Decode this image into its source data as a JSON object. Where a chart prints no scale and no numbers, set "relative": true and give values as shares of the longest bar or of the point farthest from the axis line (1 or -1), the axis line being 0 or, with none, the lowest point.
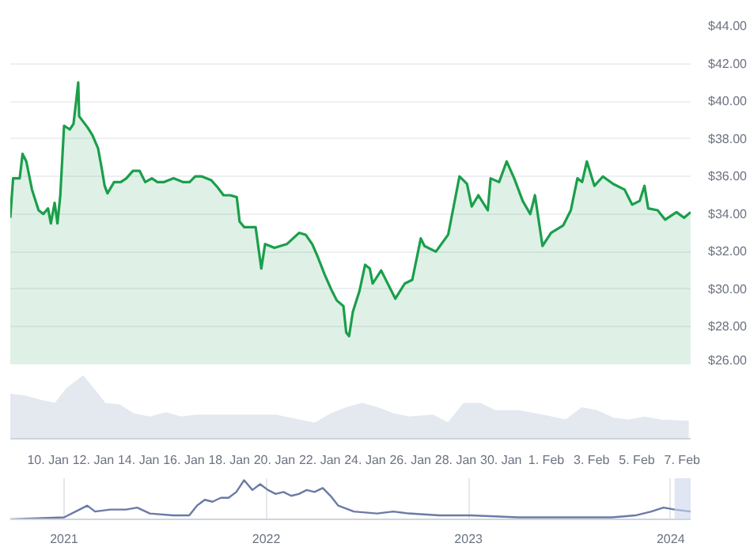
{
  "chart_data": [
    {
      "type": "area",
      "x": [
        "2024-01-08T08:00",
        "2024-01-08T11:00",
        "2024-01-08T18:00",
        "2024-01-08T21:00",
        "2024-01-09T01:00",
        "2024-01-09T07:00",
        "2024-01-09T14:00",
        "2024-01-09T19:00",
        "2024-01-10T00:00",
        "2024-01-10T03:00",
        "2024-01-10T07:00",
        "2024-01-10T10:00",
        "2024-01-10T13:00",
        "2024-01-10T17:00",
        "2024-01-10T23:00",
        "2024-01-11T03:00",
        "2024-01-11T06:00",
        "2024-01-11T08:00",
        "2024-01-11T09:00",
        "2024-01-11T18:00",
        "2024-01-11T23:00",
        "2024-01-12T05:00",
        "2024-01-12T09:00",
        "2024-01-12T12:00",
        "2024-01-12T15:00",
        "2024-01-12T22:00",
        "2024-01-13T05:00",
        "2024-01-13T11:00",
        "2024-01-13T18:00",
        "2024-01-14T01:00",
        "2024-01-14T07:00",
        "2024-01-14T14:00",
        "2024-01-14T20:00",
        "2024-01-15T03:00",
        "2024-01-15T13:00",
        "2024-01-15T23:00",
        "2024-01-16T06:00",
        "2024-01-16T12:00",
        "2024-01-16T19:00",
        "2024-01-17T05:00",
        "2024-01-17T12:00",
        "2024-01-17T18:00",
        "2024-01-18T01:00",
        "2024-01-18T08:00",
        "2024-01-18T11:00",
        "2024-01-18T16:00",
        "2024-01-19T04:00",
        "2024-01-19T10:00",
        "2024-01-19T14:00",
        "2024-01-20T00:00",
        "2024-01-20T13:00",
        "2024-01-21T02:00",
        "2024-01-21T09:00",
        "2024-01-21T16:00",
        "2024-01-21T22:00",
        "2024-01-22T05:00",
        "2024-01-22T12:00",
        "2024-01-22T18:00",
        "2024-01-23T01:00",
        "2024-01-23T04:00",
        "2024-01-23T07:00",
        "2024-01-23T11:00",
        "2024-01-23T18:00",
        "2024-01-24T00:00",
        "2024-01-24T05:00",
        "2024-01-24T08:00",
        "2024-01-24T17:00",
        "2024-01-25T08:00",
        "2024-01-25T18:00",
        "2024-01-26T02:00",
        "2024-01-26T11:00",
        "2024-01-26T15:00",
        "2024-01-27T03:00",
        "2024-01-27T16:00",
        "2024-01-28T04:00",
        "2024-01-28T12:00",
        "2024-01-28T17:00",
        "2024-01-29T00:00",
        "2024-01-29T10:00",
        "2024-01-29T13:00",
        "2024-01-29T22:00",
        "2024-01-30T06:00",
        "2024-01-30T14:00",
        "2024-01-30T23:00",
        "2024-01-31T07:00",
        "2024-01-31T12:00",
        "2024-01-31T20:00",
        "2024-02-01T05:00",
        "2024-02-01T18:00",
        "2024-02-02T02:00",
        "2024-02-02T09:00",
        "2024-02-02T14:00",
        "2024-02-02T19:00",
        "2024-02-03T03:00",
        "2024-02-03T12:00",
        "2024-02-03T23:00",
        "2024-02-04T11:00",
        "2024-02-04T19:00",
        "2024-02-05T03:00",
        "2024-02-05T08:00",
        "2024-02-05T12:00",
        "2024-02-05T22:00",
        "2024-02-06T06:00",
        "2024-02-06T18:00",
        "2024-02-07T02:00",
        "2024-02-07T09:00"
      ],
      "series": [
        {
          "color": "#1a9f4b",
          "values": [
            33.8,
            35.9,
            35.9,
            37.2,
            36.8,
            35.3,
            34.2,
            34.0,
            34.3,
            33.5,
            34.6,
            33.5,
            35.0,
            38.7,
            38.5,
            38.8,
            40.1,
            41.0,
            39.2,
            38.6,
            38.2,
            37.5,
            36.4,
            35.5,
            35.1,
            35.7,
            35.7,
            35.9,
            36.3,
            36.3,
            35.7,
            35.9,
            35.7,
            35.7,
            35.9,
            35.7,
            35.7,
            36.0,
            36.0,
            35.8,
            35.4,
            35.0,
            35.0,
            34.9,
            33.6,
            33.3,
            33.3,
            31.1,
            32.4,
            32.2,
            32.4,
            33.0,
            32.9,
            32.4,
            31.7,
            30.8,
            30.0,
            29.4,
            29.1,
            27.7,
            27.5,
            28.8,
            29.9,
            31.3,
            31.1,
            30.3,
            31.0,
            29.5,
            30.3,
            30.5,
            32.7,
            32.3,
            32.0,
            32.9,
            36.0,
            35.6,
            34.4,
            35.0,
            34.2,
            35.9,
            35.7,
            36.8,
            35.9,
            34.7,
            34.0,
            35.0,
            32.3,
            33.0,
            33.4,
            34.2,
            35.9,
            35.7,
            36.8,
            35.5,
            36.0,
            35.6,
            35.3,
            34.5,
            34.7,
            35.5,
            34.3,
            34.2,
            33.7,
            34.1,
            33.8,
            34.1
          ]
        }
      ],
      "xlim": [
        "2024-01-08T08:00",
        "2024-02-07T09:00"
      ],
      "ylim": [
        26,
        44
      ],
      "yticks": [
        {
          "value": 26,
          "label": "$26.00"
        },
        {
          "value": 28,
          "label": "$28.00"
        },
        {
          "value": 30,
          "label": "$30.00"
        },
        {
          "value": 32,
          "label": "$32.00"
        },
        {
          "value": 34,
          "label": "$34.00"
        },
        {
          "value": 36,
          "label": "$36.00"
        },
        {
          "value": 38,
          "label": "$38.00"
        },
        {
          "value": 40,
          "label": "$40.00"
        },
        {
          "value": 42,
          "label": "$42.00"
        },
        {
          "value": 44,
          "label": "$44.00"
        }
      ],
      "tick_labels": "y",
      "grid": "y"
    },
    {
      "type": "area",
      "relative": true,
      "x": [
        "2024-01-08T08:00",
        "2024-01-08T23:00",
        "2024-01-09T16:00",
        "2024-01-10T08:00",
        "2024-01-10T20:00",
        "2024-01-11T13:00",
        "2024-01-12T02:00",
        "2024-01-12T12:00",
        "2024-01-13T03:00",
        "2024-01-13T19:00",
        "2024-01-14T12:00",
        "2024-01-15T05:00",
        "2024-01-15T21:00",
        "2024-01-16T14:00",
        "2024-01-17T07:00",
        "2024-01-17T23:00",
        "2024-01-19T00:00",
        "2024-01-20T01:00",
        "2024-01-21T02:00",
        "2024-01-21T19:00",
        "2024-01-22T12:00",
        "2024-01-23T04:00",
        "2024-01-23T21:00",
        "2024-01-24T13:00",
        "2024-01-25T06:00",
        "2024-01-25T23:00",
        "2024-01-27T00:00",
        "2024-01-27T16:00",
        "2024-01-28T09:00",
        "2024-01-29T02:00",
        "2024-01-29T18:00",
        "2024-01-30T19:00",
        "2024-01-31T20:00",
        "2024-02-01T21:00",
        "2024-02-02T14:00",
        "2024-02-03T06:00",
        "2024-02-03T23:00",
        "2024-02-04T16:00",
        "2024-02-05T08:00",
        "2024-02-06T01:00",
        "2024-02-07T07:00"
      ],
      "series": [
        {
          "color": "#e4e8ef",
          "values": [
            0.71,
            0.68,
            0.61,
            0.56,
            0.8,
            1,
            0.76,
            0.56,
            0.54,
            0.39,
            0.34,
            0.41,
            0.34,
            0.37,
            0.37,
            0.37,
            0.37,
            0.37,
            0.29,
            0.24,
            0.39,
            0.49,
            0.56,
            0.49,
            0.39,
            0.34,
            0.37,
            0.24,
            0.56,
            0.56,
            0.44,
            0.44,
            0.37,
            0.29,
            0.49,
            0.44,
            0.32,
            0.29,
            0.34,
            0.29,
            0.27
          ]
        }
      ],
      "xlim": [
        "2024-01-08T08:00",
        "2024-02-07T09:00"
      ],
      "xticks": [
        {
          "value": "2024-01-10",
          "label": "10. Jan"
        },
        {
          "value": "2024-01-12",
          "label": "12. Jan"
        },
        {
          "value": "2024-01-14",
          "label": "14. Jan"
        },
        {
          "value": "2024-01-16",
          "label": "16. Jan"
        },
        {
          "value": "2024-01-18",
          "label": "18. Jan"
        },
        {
          "value": "2024-01-20",
          "label": "20. Jan"
        },
        {
          "value": "2024-01-22",
          "label": "22. Jan"
        },
        {
          "value": "2024-01-24",
          "label": "24. Jan"
        },
        {
          "value": "2024-01-26",
          "label": "26. Jan"
        },
        {
          "value": "2024-01-28",
          "label": "28. Jan"
        },
        {
          "value": "2024-01-30",
          "label": "30. Jan"
        },
        {
          "value": "2024-02-01",
          "label": "1. Feb"
        },
        {
          "value": "2024-02-03",
          "label": "3. Feb"
        },
        {
          "value": "2024-02-05",
          "label": "5. Feb"
        },
        {
          "value": "2024-02-07",
          "label": "7. Feb"
        }
      ],
      "tick_labels": "x",
      "grid": false
    },
    {
      "type": "line",
      "relative": true,
      "x": [
        "2020-09-26",
        "2021-01-01",
        "2021-01-29",
        "2021-02-12",
        "2021-02-26",
        "2021-03-26",
        "2021-04-23",
        "2021-05-13",
        "2021-06-05",
        "2021-07-17",
        "2021-08-15",
        "2021-08-29",
        "2021-09-12",
        "2021-09-26",
        "2021-10-11",
        "2021-10-25",
        "2021-11-08",
        "2021-11-22",
        "2021-12-07",
        "2021-12-21",
        "2022-01-04",
        "2022-01-18",
        "2022-02-01",
        "2022-02-15",
        "2022-03-01",
        "2022-03-15",
        "2022-03-29",
        "2022-04-13",
        "2022-04-27",
        "2022-05-11",
        "2022-06-08",
        "2022-07-20",
        "2022-08-18",
        "2022-09-15",
        "2022-11-10",
        "2023-01-06",
        "2023-04-01",
        "2023-06-24",
        "2023-09-17",
        "2023-10-29",
        "2023-11-27",
        "2023-12-19",
        "2024-01-08",
        "2024-02-06"
      ],
      "series": [
        {
          "color": "#6b7aa6",
          "values": [
            0,
            0.05,
            0.25,
            0.35,
            0.2,
            0.25,
            0.25,
            0.3,
            0.15,
            0.1,
            0.1,
            0.35,
            0.5,
            0.45,
            0.55,
            0.55,
            0.7,
            1,
            0.75,
            0.9,
            0.75,
            0.65,
            0.7,
            0.6,
            0.65,
            0.75,
            0.7,
            0.8,
            0.6,
            0.35,
            0.2,
            0.15,
            0.2,
            0.15,
            0.1,
            0.1,
            0.05,
            0.05,
            0.05,
            0.1,
            0.2,
            0.3,
            0.25,
            0.2
          ]
        }
      ],
      "xlim": [
        "2020-09-26",
        "2024-02-06"
      ],
      "xticks": [
        {
          "value": "2021-01-01",
          "label": "2021"
        },
        {
          "value": "2022-01-01",
          "label": "2022"
        },
        {
          "value": "2023-01-01",
          "label": "2023"
        },
        {
          "value": "2024-01-01",
          "label": "2024"
        }
      ],
      "bands": [
        {
          "axis": "x",
          "from": "2024-01-08",
          "to": "2024-02-06",
          "color": "#ccd6eb"
        }
      ],
      "tick_labels": "x",
      "grid": "x"
    }
  ]
}
